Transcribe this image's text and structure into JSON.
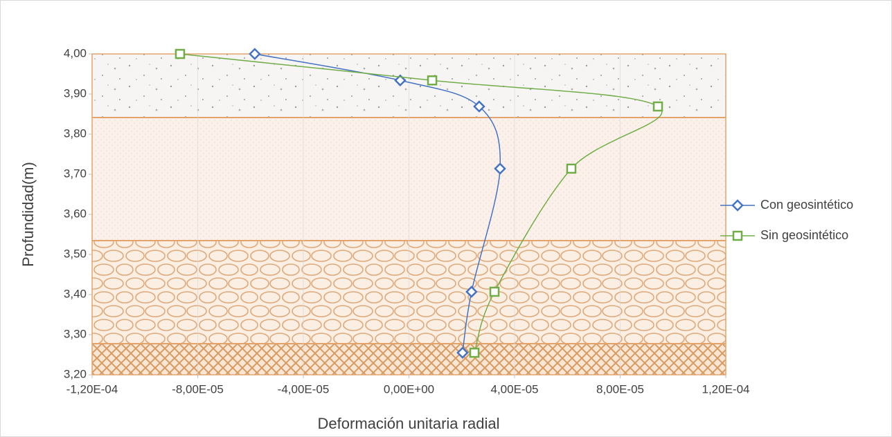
{
  "chart_data": {
    "type": "scatter",
    "x_label": "Deformación unitaria radial",
    "y_label": "Profundidad(m)",
    "xlim": [
      -0.00012,
      0.00012
    ],
    "xticks": [
      {
        "value": -0.00012,
        "label": "-1,20E-04"
      },
      {
        "value": -8e-05,
        "label": "-8,00E-05"
      },
      {
        "value": -4e-05,
        "label": "-4,00E-05"
      },
      {
        "value": 0,
        "label": "0,00E+00"
      },
      {
        "value": 4e-05,
        "label": "4,00E-05"
      },
      {
        "value": 8e-05,
        "label": "8,00E-05"
      },
      {
        "value": 0.00012,
        "label": "1,20E-04"
      }
    ],
    "ylim": [
      3.2,
      4.0
    ],
    "yticks": [
      {
        "value": 3.2,
        "label": "3,20"
      },
      {
        "value": 3.3,
        "label": "3,30"
      },
      {
        "value": 3.4,
        "label": "3,40"
      },
      {
        "value": 3.5,
        "label": "3,50"
      },
      {
        "value": 3.6,
        "label": "3,60"
      },
      {
        "value": 3.7,
        "label": "3,70"
      },
      {
        "value": 3.8,
        "label": "3,80"
      },
      {
        "value": 3.9,
        "label": "3,90"
      },
      {
        "value": 4.0,
        "label": "4,00"
      }
    ],
    "grid": true,
    "legend": "right",
    "series": [
      {
        "name": "Con geosintético",
        "color": "#4472c4",
        "marker": "diamond",
        "x": [
          -5.84e-05,
          -3.3e-06,
          2.66e-05,
          3.45e-05,
          2.37e-05,
          2.03e-05
        ],
        "values": [
          4.0,
          3.934,
          3.869,
          3.714,
          3.407,
          3.255
        ]
      },
      {
        "name": "Sin geosintético",
        "color": "#70ad47",
        "marker": "square",
        "x": [
          -8.67e-05,
          8.8e-06,
          9.43e-05,
          6.15e-05,
          3.24e-05,
          2.48e-05
        ],
        "values": [
          4.0,
          3.934,
          3.869,
          3.714,
          3.407,
          3.255
        ]
      }
    ]
  }
}
